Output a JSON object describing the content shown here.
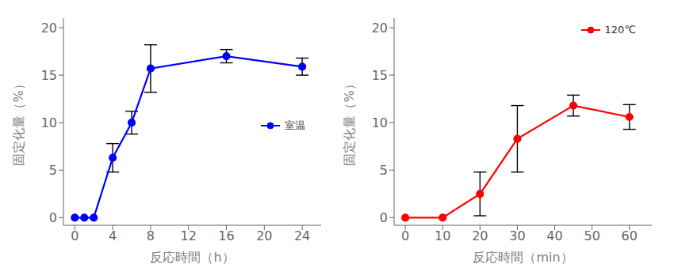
{
  "chart_data": [
    {
      "type": "line",
      "xlabel": "反応時間（h）",
      "ylabel": "固定化量（%）",
      "x": [
        0,
        1,
        2,
        4,
        6,
        8,
        16,
        24
      ],
      "series": [
        {
          "name": "室温",
          "color": "#0000FF",
          "marker": "circle",
          "values": [
            0,
            0,
            0,
            6.3,
            10.0,
            15.7,
            17.0,
            15.9
          ],
          "yerr": [
            0,
            0,
            0,
            1.5,
            1.2,
            2.5,
            0.7,
            0.9
          ]
        }
      ],
      "xlim": [
        -1.2,
        26
      ],
      "ylim": [
        -0.8,
        21
      ],
      "xticks": [
        0,
        4,
        8,
        12,
        16,
        20,
        24
      ],
      "yticks": [
        0,
        5,
        10,
        15,
        20
      ],
      "grid": false,
      "legend": "center right"
    },
    {
      "type": "line",
      "xlabel": "反応時間（min）",
      "ylabel": "固定化量（%）",
      "x": [
        0,
        10,
        20,
        30,
        45,
        60
      ],
      "series": [
        {
          "name": "120℃",
          "color": "#FF0000",
          "marker": "circle",
          "values": [
            0,
            0,
            2.5,
            8.3,
            11.8,
            10.6
          ],
          "yerr": [
            0,
            0,
            2.3,
            3.5,
            1.1,
            1.3
          ]
        }
      ],
      "xlim": [
        -3,
        66
      ],
      "ylim": [
        -0.8,
        21
      ],
      "xticks": [
        0,
        10,
        20,
        30,
        40,
        50,
        60
      ],
      "yticks": [
        0,
        5,
        10,
        15,
        20
      ],
      "grid": false,
      "legend": "upper right"
    }
  ]
}
